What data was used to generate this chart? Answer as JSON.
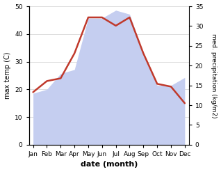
{
  "months": [
    "Jan",
    "Feb",
    "Mar",
    "Apr",
    "May",
    "Jun",
    "Jul",
    "Aug",
    "Sep",
    "Oct",
    "Nov",
    "Dec"
  ],
  "temperature": [
    19,
    23,
    24,
    33,
    46,
    46,
    43,
    46,
    33,
    22,
    21,
    15
  ],
  "precipitation": [
    13,
    14,
    18,
    19,
    32,
    32,
    34,
    33,
    23,
    15,
    15,
    17
  ],
  "temp_color": "#c0392b",
  "precip_color_fill": "#c5cef0",
  "ylim_left": [
    0,
    50
  ],
  "ylim_right": [
    0,
    35
  ],
  "yticks_left": [
    0,
    10,
    20,
    30,
    40,
    50
  ],
  "yticks_right": [
    0,
    5,
    10,
    15,
    20,
    25,
    30,
    35
  ],
  "xlabel": "date (month)",
  "ylabel_left": "max temp (C)",
  "ylabel_right": "med. precipitation (kg/m2)",
  "background_color": "#ffffff",
  "grid_color": "#d0d0d0"
}
